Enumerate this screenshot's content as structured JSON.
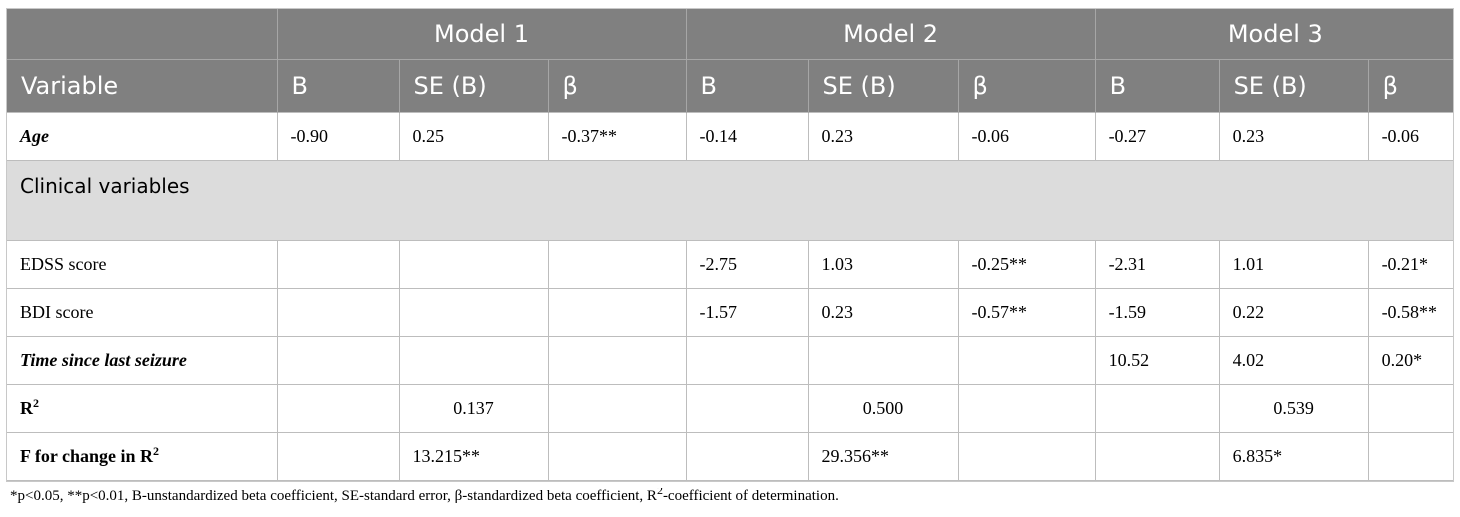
{
  "header": {
    "models": [
      "Model 1",
      "Model 2",
      "Model 3"
    ],
    "variable_label": "Variable",
    "columns": [
      "B",
      "SE (B)",
      "β",
      "B",
      "SE (B)",
      "β",
      "B",
      "SE (B)",
      "β"
    ]
  },
  "rows": {
    "age": {
      "label": "Age",
      "cells": [
        "-0.90",
        "0.25",
        "-0.37**",
        "-0.14",
        "0.23",
        "-0.06",
        "-0.27",
        "0.23",
        "-0.06"
      ]
    },
    "section": {
      "label": "Clinical variables"
    },
    "edss": {
      "label": "EDSS score",
      "cells": [
        "",
        "",
        "",
        "-2.75",
        "1.03",
        "-0.25**",
        "-2.31",
        "1.01",
        "-0.21*"
      ]
    },
    "bdi": {
      "label": "BDI score",
      "cells": [
        "",
        "",
        "",
        "-1.57",
        "0.23",
        "-0.57**",
        "-1.59",
        "0.22",
        "-0.58**"
      ]
    },
    "seizure": {
      "label": "Time since last seizure",
      "cells": [
        "",
        "",
        "",
        "",
        "",
        "",
        "10.52",
        "4.02",
        "0.20*"
      ]
    },
    "r2": {
      "label": "R",
      "sup": "2",
      "cells": [
        "",
        "0.137",
        "",
        "",
        "0.500",
        "",
        "",
        "0.539",
        ""
      ]
    },
    "fchange": {
      "label": "F for change in R",
      "sup": "2",
      "cells": [
        "",
        "13.215**",
        "",
        "",
        "29.356**",
        "",
        "",
        "6.835*",
        ""
      ]
    }
  },
  "footnote": {
    "part1": "*p<0.05, **p<0.01, B-unstandardized beta coefficient, SE-standard error, β-standardized beta coefficient, R",
    "sup": "2",
    "part2": "-coefficient of determination."
  }
}
